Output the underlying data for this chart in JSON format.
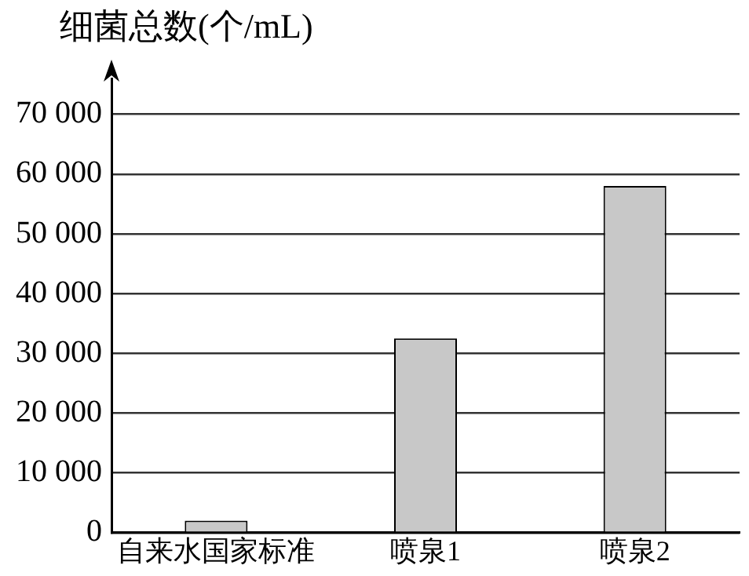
{
  "chart_data": {
    "type": "bar",
    "ylabel": "细菌总数(个/mL)",
    "categories": [
      "自来水国家标准",
      "喷泉1",
      "喷泉2"
    ],
    "values": [
      2000,
      32500,
      58000
    ],
    "color": "#c8c8c8",
    "ylim": [
      0,
      76000
    ],
    "yticks": [
      {
        "value": 0,
        "label": "0"
      },
      {
        "value": 10000,
        "label": "10 000"
      },
      {
        "value": 20000,
        "label": "20 000"
      },
      {
        "value": 30000,
        "label": "30 000"
      },
      {
        "value": 40000,
        "label": "40 000"
      },
      {
        "value": 50000,
        "label": "50 000"
      },
      {
        "value": 60000,
        "label": "60 000"
      },
      {
        "value": 70000,
        "label": "70 000"
      }
    ],
    "grid": "y",
    "legend": false
  }
}
